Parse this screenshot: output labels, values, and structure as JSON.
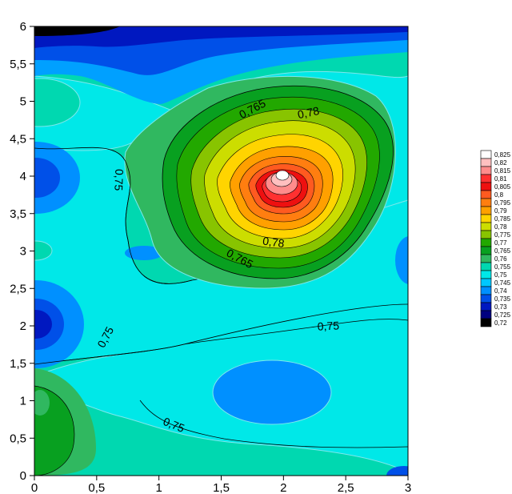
{
  "chart_data": {
    "type": "heatmap",
    "subtype": "filled-contour",
    "title": "",
    "xlabel": "",
    "ylabel": "",
    "xlim": [
      0,
      3
    ],
    "ylim": [
      0,
      6
    ],
    "x_ticks": [
      "0",
      "0,5",
      "1",
      "1,5",
      "2",
      "2,5",
      "3"
    ],
    "y_ticks": [
      "0",
      "0,5",
      "1",
      "1,5",
      "2",
      "2,5",
      "3",
      "3,5",
      "4",
      "4,5",
      "5",
      "5,5",
      "6"
    ],
    "legend_position": "right",
    "legend": [
      {
        "label": "0,825",
        "color": "#ffffff"
      },
      {
        "label": "0,82",
        "color": "#ffc0c0"
      },
      {
        "label": "0,815",
        "color": "#ff8c8c"
      },
      {
        "label": "0,81",
        "color": "#ff3030"
      },
      {
        "label": "0,805",
        "color": "#ee1010"
      },
      {
        "label": "0,8",
        "color": "#ff5a20"
      },
      {
        "label": "0,795",
        "color": "#ff7e10"
      },
      {
        "label": "0,79",
        "color": "#ffa000"
      },
      {
        "label": "0,785",
        "color": "#ffd400"
      },
      {
        "label": "0,78",
        "color": "#ccdd00"
      },
      {
        "label": "0,775",
        "color": "#88c400"
      },
      {
        "label": "0,77",
        "color": "#22a800"
      },
      {
        "label": "0,765",
        "color": "#08a020"
      },
      {
        "label": "0,76",
        "color": "#30b860"
      },
      {
        "label": "0,755",
        "color": "#00d8b0"
      },
      {
        "label": "0,75",
        "color": "#00e8e8"
      },
      {
        "label": "0,745",
        "color": "#00c8ff"
      },
      {
        "label": "0,74",
        "color": "#0090ff"
      },
      {
        "label": "0,735",
        "color": "#0050e8"
      },
      {
        "label": "0,73",
        "color": "#0018c0"
      },
      {
        "label": "0,725",
        "color": "#000080"
      },
      {
        "label": "0,72",
        "color": "#000000"
      }
    ],
    "contour_labels": [
      {
        "text": "0,765",
        "x": 1.75,
        "y": 4.9,
        "angle": -28
      },
      {
        "text": "0,78",
        "x": 2.2,
        "y": 4.85,
        "angle": -12
      },
      {
        "text": "0,78",
        "x": 1.92,
        "y": 3.12,
        "angle": 8
      },
      {
        "text": "0,765",
        "x": 1.65,
        "y": 2.9,
        "angle": 28
      },
      {
        "text": "0,75",
        "x": 0.68,
        "y": 3.95,
        "angle": 92
      },
      {
        "text": "0,75",
        "x": 0.57,
        "y": 1.85,
        "angle": -62
      },
      {
        "text": "0,75",
        "x": 2.36,
        "y": 2.0,
        "angle": -3
      },
      {
        "text": "0,75",
        "x": 1.12,
        "y": 0.68,
        "angle": 22
      }
    ],
    "features": [
      {
        "kind": "maximum",
        "x": 2.0,
        "y": 4.0,
        "value": 0.825
      },
      {
        "kind": "minimum",
        "x": 0.0,
        "y": 6.0,
        "value": 0.72
      },
      {
        "kind": "minimum",
        "x": 0.05,
        "y": 4.0,
        "value": 0.735
      },
      {
        "kind": "minimum",
        "x": 0.05,
        "y": 2.0,
        "value": 0.735
      },
      {
        "kind": "minimum",
        "x": 2.05,
        "y": 1.1,
        "value": 0.74
      },
      {
        "kind": "maximum",
        "x": 0.05,
        "y": 0.95,
        "value": 0.765
      }
    ]
  }
}
